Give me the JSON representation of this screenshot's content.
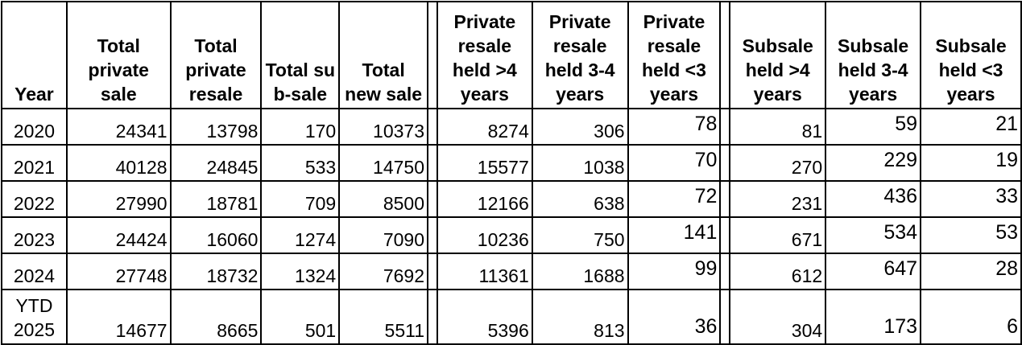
{
  "table": {
    "headers": [
      "Year",
      "Total private sale",
      "Total private resale",
      "Total sub-sale",
      "Total new sale",
      "Private resale held >4 years",
      "Private resale held 3-4 years",
      "Private resale held <3 years",
      "Subsale held >4 years",
      "Subsale held 3-4 years",
      "Subsale held <3 years"
    ],
    "rows": [
      [
        "2020",
        "24341",
        "13798",
        "170",
        "10373",
        "8274",
        "306",
        "78",
        "81",
        "59",
        "21"
      ],
      [
        "2021",
        "40128",
        "24845",
        "533",
        "14750",
        "15577",
        "1038",
        "70",
        "270",
        "229",
        "19"
      ],
      [
        "2022",
        "27990",
        "18781",
        "709",
        "8500",
        "12166",
        "638",
        "72",
        "231",
        "436",
        "33"
      ],
      [
        "2023",
        "24424",
        "16060",
        "1274",
        "7090",
        "10236",
        "750",
        "141",
        "671",
        "534",
        "53"
      ],
      [
        "2024",
        "27748",
        "18732",
        "1324",
        "7692",
        "11361",
        "1688",
        "99",
        "612",
        "647",
        "28"
      ],
      [
        "YTD 2025",
        "14677",
        "8665",
        "501",
        "5511",
        "5396",
        "813",
        "36",
        "304",
        "173",
        "6"
      ]
    ]
  }
}
